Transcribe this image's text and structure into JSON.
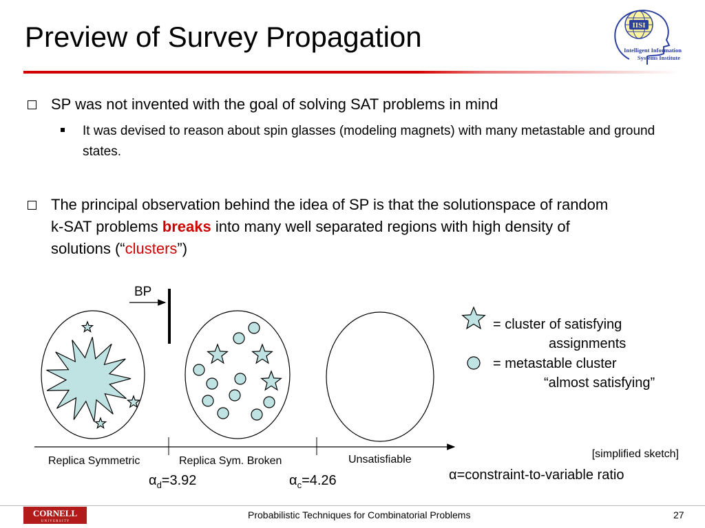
{
  "slide": {
    "title": "Preview of Survey Propagation",
    "bullet1": "SP was not invented with the goal of solving SAT problems in mind",
    "bullet1_sub": "It was devised to reason about spin glasses (modeling magnets) with many metastable and ground states.",
    "bullet2_part1": "The principal observation behind the idea of SP is that the solutionspace of random k-SAT problems ",
    "bullet2_breaks": "breaks",
    "bullet2_part2": " into many well separated regions with high density of solutions (“",
    "bullet2_clusters": "clusters",
    "bullet2_part3": "”)"
  },
  "diagram": {
    "bp_label": "BP",
    "phase1": "Replica Symmetric",
    "phase2": "Replica Sym. Broken",
    "phase3": "Unsatisfiable",
    "alpha_d_symbol": "α",
    "alpha_d_sub": "d",
    "alpha_d_value": "=3.92",
    "alpha_c_symbol": "α",
    "alpha_c_sub": "c",
    "alpha_c_value": "=4.26",
    "legend_star_line1": "= cluster of satisfying",
    "legend_star_line2": "assignments",
    "legend_circle_line1": "= metastable cluster",
    "legend_circle_line2": "“almost satisfying”",
    "note": "[simplified sketch]",
    "alpha_definition": "α=constraint-to-variable ratio",
    "fill_color": "#bfe3e3"
  },
  "logo": {
    "text1": "IISI",
    "text2": "Intelligent Information",
    "text3": "Systems Institute"
  },
  "footer": {
    "cornell": "CORNELL",
    "cornell_sub": "U N I V E R S I T Y",
    "text": "Probabilistic Techniques for Combinatorial Problems",
    "page": "27"
  },
  "colors": {
    "accent": "#cc0000",
    "cluster_fill": "#bfe3e3"
  }
}
